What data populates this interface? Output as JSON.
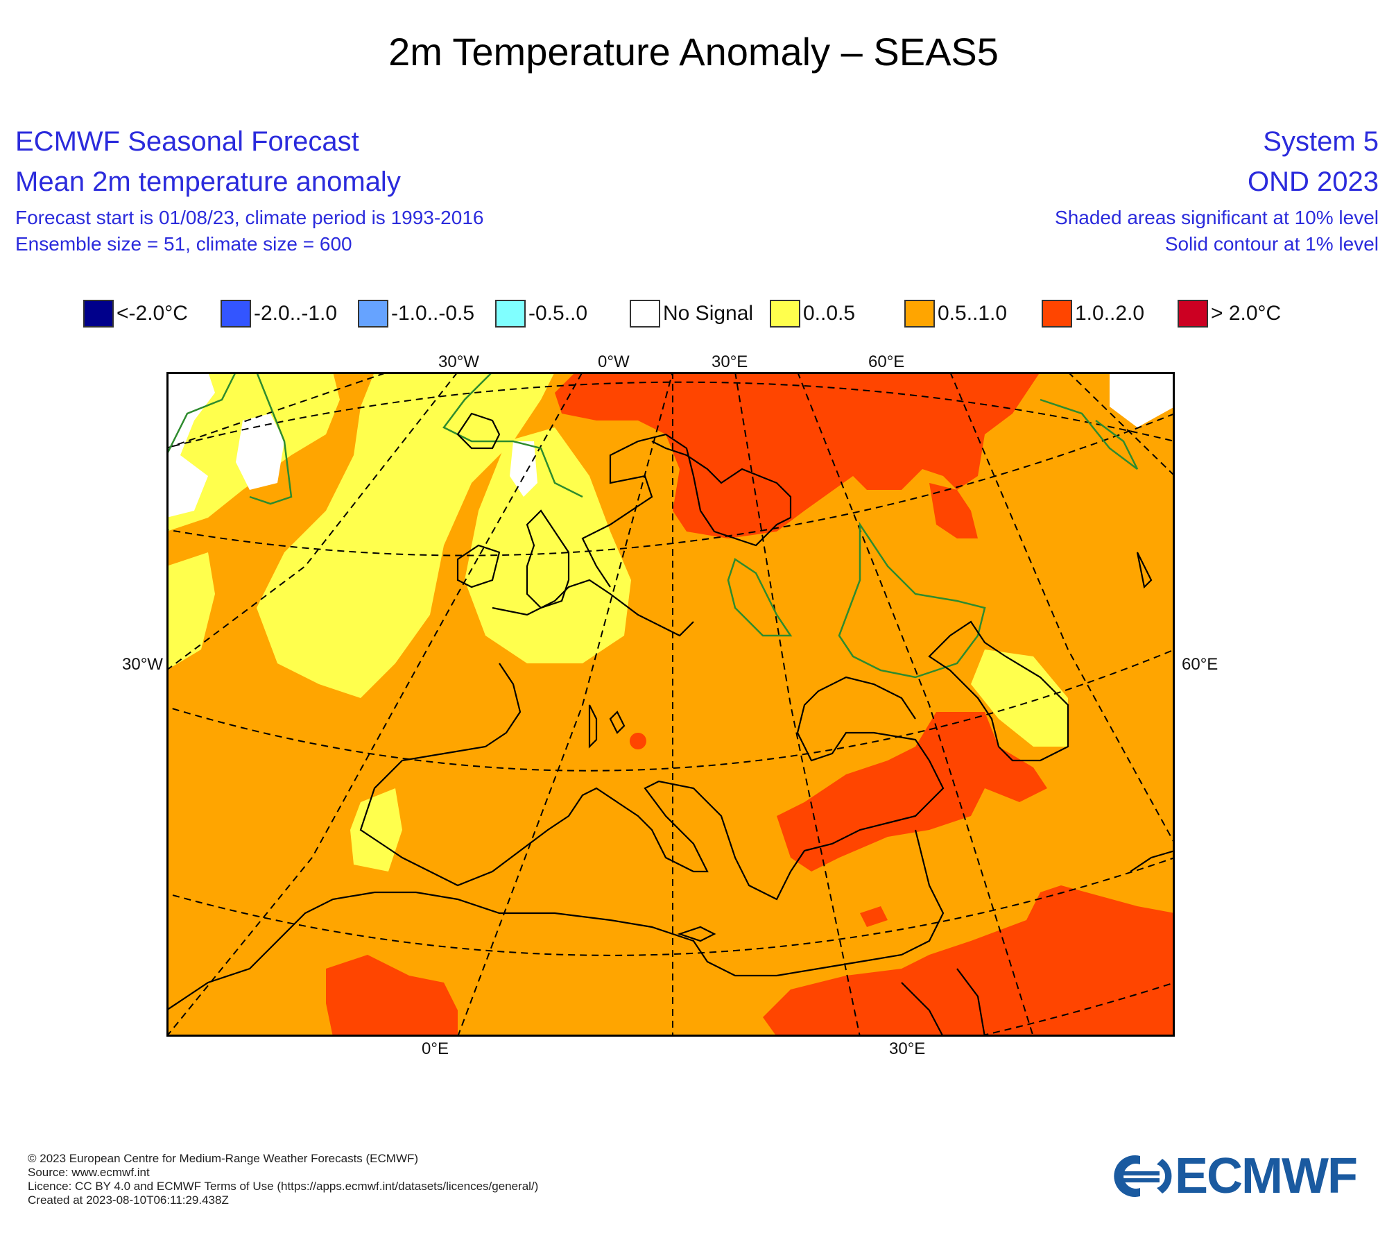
{
  "title": "2m Temperature Anomaly – SEAS5",
  "header": {
    "left_line1": "ECMWF Seasonal Forecast",
    "left_line2": "Mean 2m temperature anomaly",
    "left_line3": "Forecast start is 01/08/23, climate period is 1993-2016",
    "left_line4": "Ensemble size = 51, climate size = 600",
    "right_line1": "System 5",
    "right_line2": "OND 2023",
    "right_line3": "Shaded areas significant at 10% level",
    "right_line4": "Solid contour at 1% level"
  },
  "legend": [
    {
      "label": "<-2.0°C",
      "color": "#00008b"
    },
    {
      "label": "-2.0..-1.0",
      "color": "#3355ff"
    },
    {
      "label": "-1.0..-0.5",
      "color": "#66a3ff"
    },
    {
      "label": "-0.5..0",
      "color": "#80ffff"
    },
    {
      "label": "No Signal",
      "color": "#ffffff"
    },
    {
      "label": "0..0.5",
      "color": "#ffff4d"
    },
    {
      "label": "0.5..1.0",
      "color": "#ffa500"
    },
    {
      "label": "1.0..2.0",
      "color": "#ff4500"
    },
    {
      "label": "> 2.0°C",
      "color": "#cc0022"
    }
  ],
  "map": {
    "top_ticks": [
      "30°W",
      "0°W",
      "30°E",
      "60°E"
    ],
    "left_tick": "30°W",
    "right_tick": "60°E",
    "bottom_ticks": [
      "0°E",
      "30°E"
    ],
    "colors": {
      "base": "#ffa500",
      "warm": "#ff4500",
      "mild": "#ffff4d",
      "none": "#ffffff",
      "coast": "#000000",
      "contour": "#2e8b2e"
    }
  },
  "footer": {
    "line1": "© 2023 European Centre for Medium-Range Weather Forecasts (ECMWF)",
    "line2": "Source: www.ecmwf.int",
    "line3": "Licence: CC BY 4.0 and ECMWF Terms of Use (https://apps.ecmwf.int/datasets/licences/general/)",
    "line4": "Created at 2023-08-10T06:11:29.438Z"
  },
  "logo": {
    "text": "ECMWF",
    "color": "#1a5aa0"
  }
}
